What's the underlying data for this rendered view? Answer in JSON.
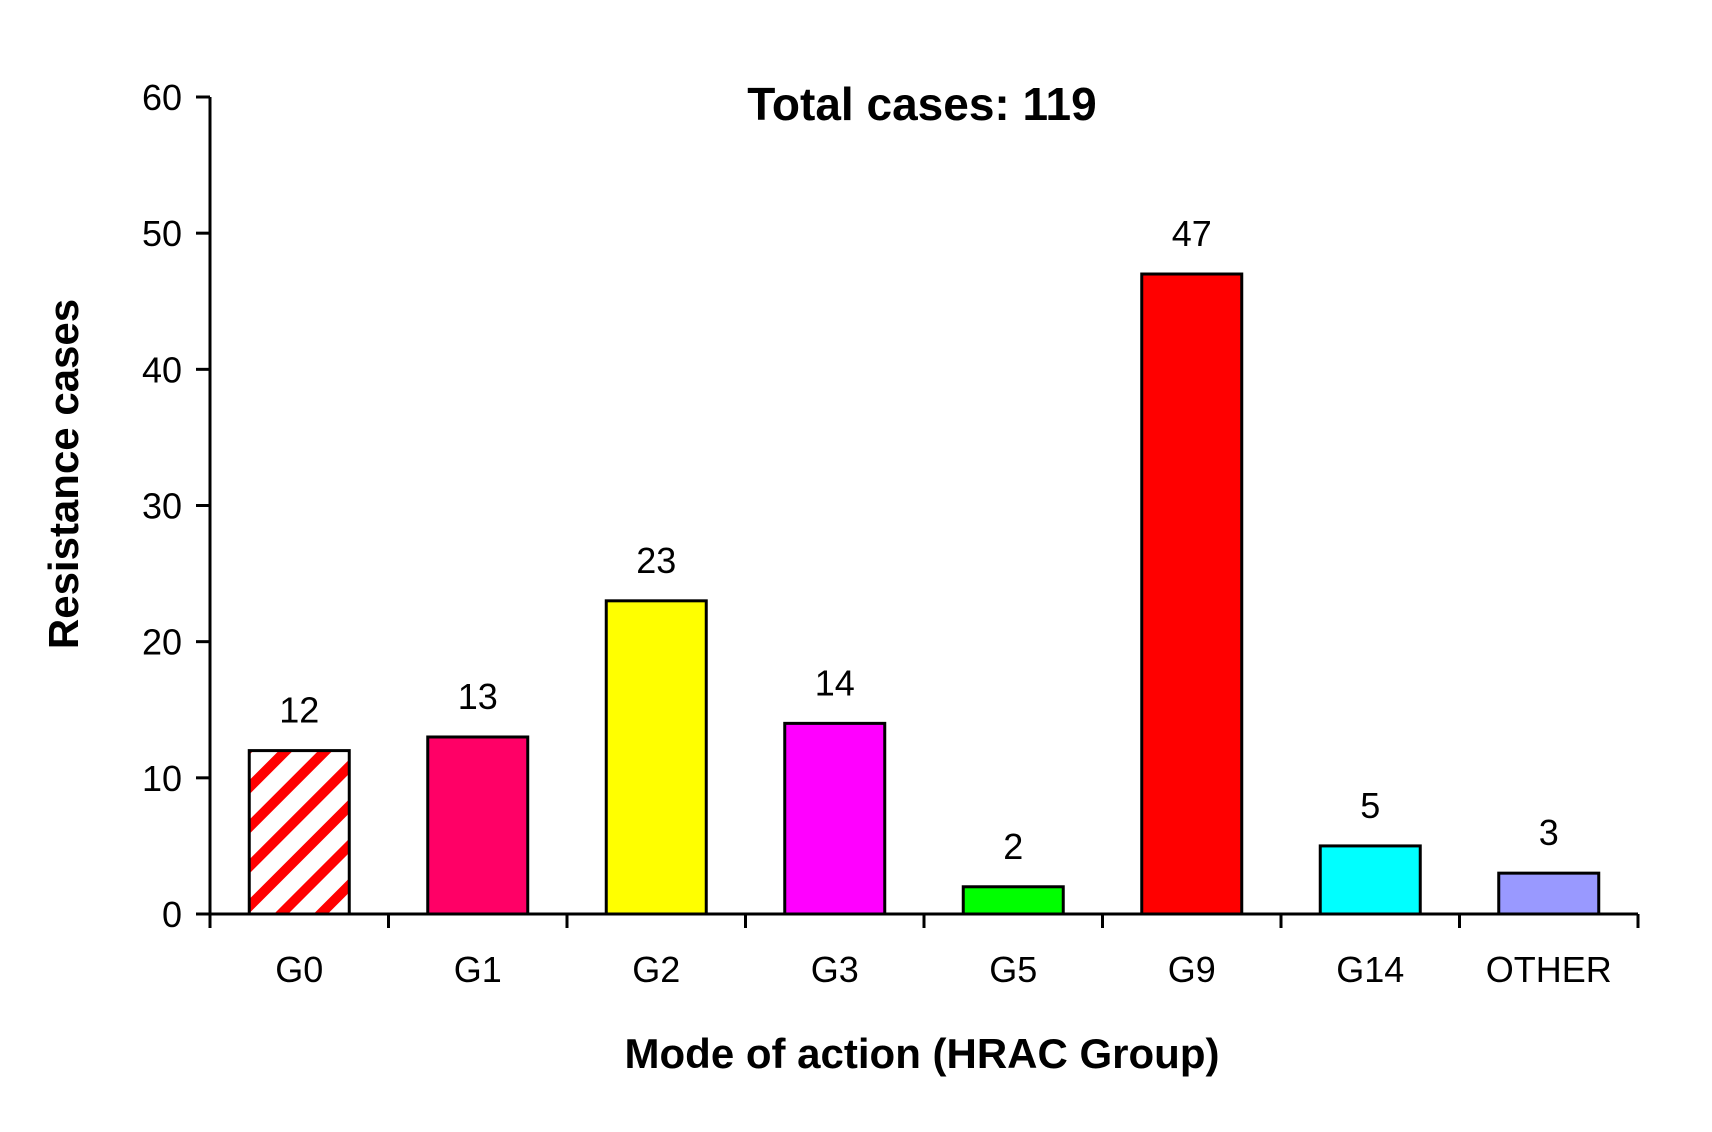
{
  "chart_data": {
    "type": "bar",
    "title": "Total cases: 119",
    "xlabel": "Mode of action (HRAC Group)",
    "ylabel": "Resistance cases",
    "categories": [
      "G0",
      "G1",
      "G2",
      "G3",
      "G5",
      "G9",
      "G14",
      "OTHER"
    ],
    "values": [
      12,
      13,
      23,
      14,
      2,
      47,
      5,
      3
    ],
    "data_labels": [
      "12",
      "13",
      "23",
      "14",
      "2",
      "47",
      "5",
      "3"
    ],
    "colors": [
      "hatch-red-white",
      "#ff0066",
      "#ffff00",
      "#ff00ff",
      "#00ff00",
      "#ff0000",
      "#00ffff",
      "#9999ff"
    ],
    "ylim": [
      0,
      60
    ],
    "yticks": [
      0,
      10,
      20,
      30,
      40,
      50,
      60
    ],
    "ytick_labels": [
      "0",
      "10",
      "20",
      "30",
      "40",
      "50",
      "60"
    ],
    "grid": false,
    "legend": "none"
  }
}
